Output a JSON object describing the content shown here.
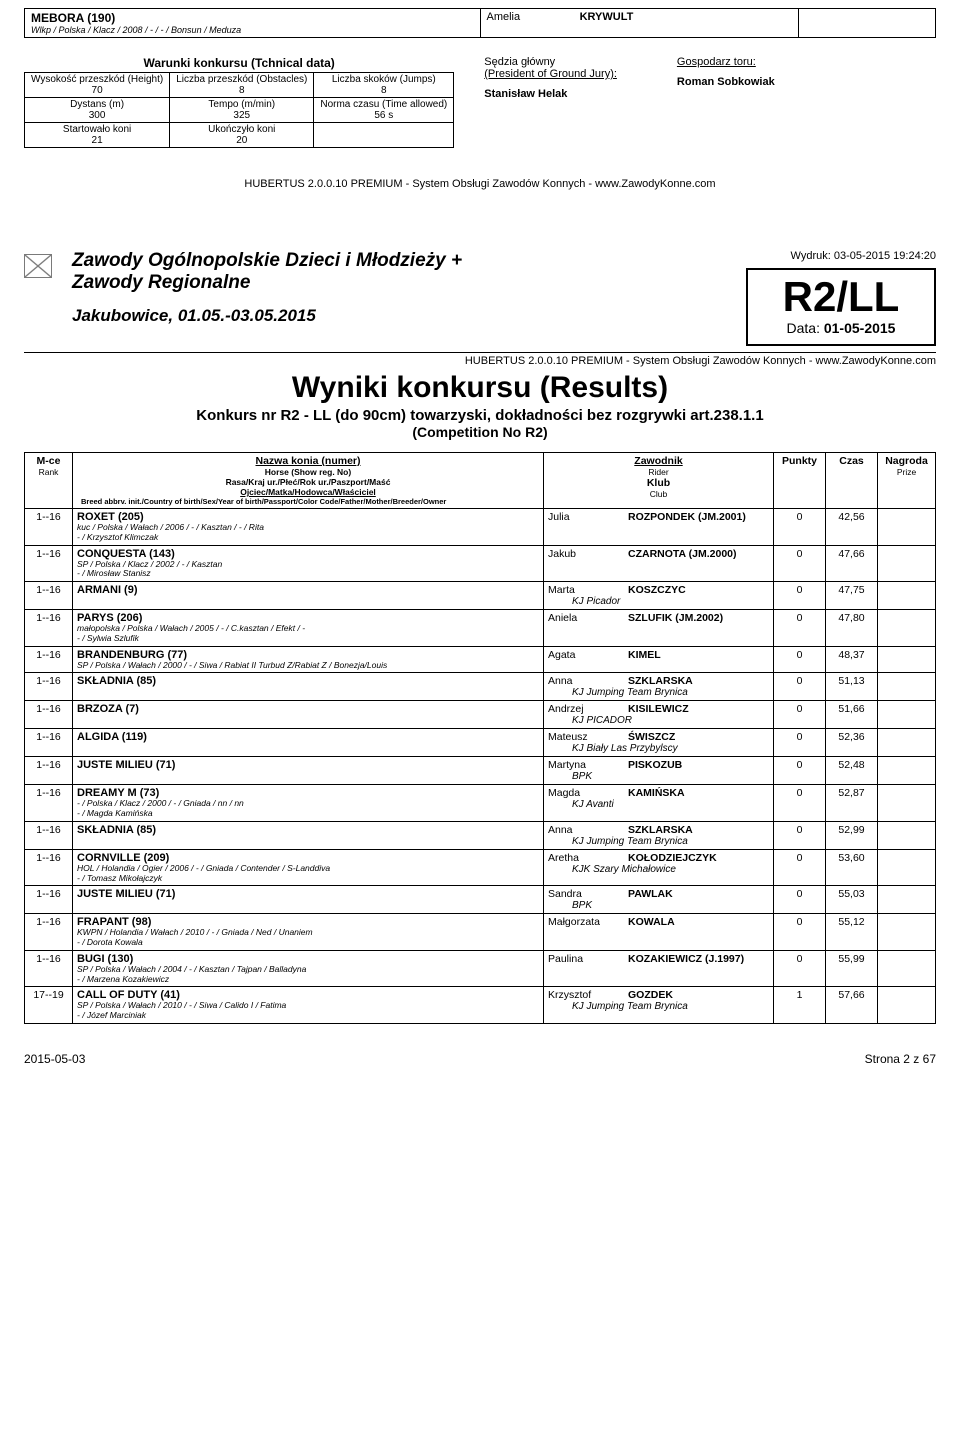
{
  "topHorse": {
    "name": "MEBORA (190)",
    "pedigree": "Wlkp / Polska / Klacz / 2008 / - / - / Bonsun / Meduza"
  },
  "topRider": {
    "first": "Amelia",
    "last": "KRYWULT"
  },
  "tech": {
    "title": "Warunki konkursu (Tchnical data)",
    "rows": [
      [
        {
          "label": "Wysokość przeszkód (Height)",
          "val": "70"
        },
        {
          "label": "Liczba przeszkód (Obstacles)",
          "val": "8"
        },
        {
          "label": "Liczba skoków (Jumps)",
          "val": "8"
        }
      ],
      [
        {
          "label": "Dystans (m)",
          "val": "300"
        },
        {
          "label": "Tempo (m/min)",
          "val": "325"
        },
        {
          "label": "Norma czasu (Time allowed)",
          "val": "56 s"
        }
      ],
      [
        {
          "label": "Startowało koni",
          "val": "21"
        },
        {
          "label": "Ukończyło koni",
          "val": "20"
        },
        {
          "label": "",
          "val": ""
        }
      ]
    ]
  },
  "officials": {
    "judgeLbl1": "Sędzia główny",
    "judgeLbl2": "(President of Ground Jury):",
    "judgeName": "Stanisław Helak",
    "hostLbl": "Gospodarz toru:",
    "hostName": "Roman Sobkowiak"
  },
  "systemLine": "HUBERTUS 2.0.0.10 PREMIUM - System Obsługi Zawodów Konnych - www.ZawodyKonne.com",
  "event": {
    "title1": "Zawody Ogólnopolskie Dzieci i Młodzieży +",
    "title2": "Zawody Regionalne",
    "dates": "Jakubowice, 01.05.-03.05.2015",
    "printLine": "Wydruk: 03-05-2015 19:24:20",
    "code": "R2/LL",
    "dateLabel": "Data:",
    "dateVal": "01-05-2015"
  },
  "results": {
    "title": "Wyniki konkursu (Results)",
    "sub": "Konkurs nr R2 - LL (do 90cm) towarzyski, dokładności bez rozgrywki art.238.1.1",
    "sub2": "(Competition No R2)"
  },
  "headers": {
    "rank": "M-ce",
    "rankSub": "Rank",
    "horseL1": "Nazwa konia (numer)",
    "horseL2": "Horse (Show reg. No)",
    "horseL3": "Rasa/Kraj ur./Płeć/Rok ur./Paszport/Maść",
    "horseL3b": "Ojciec/Matka/Hodowca/Właściciel",
    "horseL4": "Breed abbrv. init./Country of birth/Sex/Year of birth/Passport/Color Code/Father/Mother/Breeder/Owner",
    "rider": "Zawodnik",
    "riderSub": "Rider",
    "club": "Klub",
    "clubSub": "Club",
    "points": "Punkty",
    "time": "Czas",
    "prize": "Nagroda",
    "prizeSub": "Prize"
  },
  "rows": [
    {
      "rank": "1--16",
      "horse": "ROXET (205)",
      "pedigree": "kuc / Polska / Wałach / 2006 / - / Kasztan / - / Rita\n- / Krzysztof Klimczak",
      "first": "Julia",
      "last": "ROZPONDEK (JM.2001)",
      "club": "",
      "pts": "0",
      "time": "42,56"
    },
    {
      "rank": "1--16",
      "horse": "CONQUESTA (143)",
      "pedigree": "SP / Polska / Klacz / 2002 / - / Kasztan\n- / Mirosław Stanisz",
      "first": "Jakub",
      "last": "CZARNOTA (JM.2000)",
      "club": "",
      "pts": "0",
      "time": "47,66"
    },
    {
      "rank": "1--16",
      "horse": "ARMANI (9)",
      "pedigree": "",
      "first": "Marta",
      "last": "KOSZCZYC",
      "club": "KJ Picador",
      "pts": "0",
      "time": "47,75"
    },
    {
      "rank": "1--16",
      "horse": "PARYS (206)",
      "pedigree": "małopolska / Polska / Wałach / 2005 / - / C.kasztan / Efekt / -\n- / Sylwia Szlufik",
      "first": "Aniela",
      "last": "SZLUFIK (JM.2002)",
      "club": "",
      "pts": "0",
      "time": "47,80"
    },
    {
      "rank": "1--16",
      "horse": "BRANDENBURG (77)",
      "pedigree": "SP / Polska / Wałach / 2000 / - / Siwa / Rabiat II Turbud Z/Rabiat Z / Bonezja/Louis",
      "first": "Agata",
      "last": "KIMEL",
      "club": "",
      "pts": "0",
      "time": "48,37"
    },
    {
      "rank": "1--16",
      "horse": "SKŁADNIA (85)",
      "pedigree": "",
      "first": "Anna",
      "last": "SZKLARSKA",
      "club": "KJ Jumping Team Brynica",
      "pts": "0",
      "time": "51,13"
    },
    {
      "rank": "1--16",
      "horse": "BRZOZA (7)",
      "pedigree": "",
      "first": "Andrzej",
      "last": "KISILEWICZ",
      "club": "KJ PICADOR",
      "pts": "0",
      "time": "51,66"
    },
    {
      "rank": "1--16",
      "horse": "ALGIDA (119)",
      "pedigree": "",
      "first": "Mateusz",
      "last": "ŚWISZCZ",
      "club": "KJ Biały Las Przybylscy",
      "pts": "0",
      "time": "52,36"
    },
    {
      "rank": "1--16",
      "horse": "JUSTE MILIEU (71)",
      "pedigree": "",
      "first": "Martyna",
      "last": "PISKOZUB",
      "club": "BPK",
      "pts": "0",
      "time": "52,48"
    },
    {
      "rank": "1--16",
      "horse": "DREAMY M (73)",
      "pedigree": "- / Polska / Klacz / 2000 / - / Gniada / nn / nn\n- / Magda Kamińska",
      "first": "Magda",
      "last": "KAMIŃSKA",
      "club": "KJ Avanti",
      "pts": "0",
      "time": "52,87"
    },
    {
      "rank": "1--16",
      "horse": "SKŁADNIA (85)",
      "pedigree": "",
      "first": "Anna",
      "last": "SZKLARSKA",
      "club": "KJ Jumping Team Brynica",
      "pts": "0",
      "time": "52,99"
    },
    {
      "rank": "1--16",
      "horse": "CORNVILLE (209)",
      "pedigree": "HOL / Holandia / Ogier / 2006 / - / Gniada / Contender / S-Landdiva\n- / Tomasz Mikołajczyk",
      "first": "Aretha",
      "last": "KOŁODZIEJCZYK",
      "club": "KJK Szary Michałowice",
      "pts": "0",
      "time": "53,60"
    },
    {
      "rank": "1--16",
      "horse": "JUSTE MILIEU (71)",
      "pedigree": "",
      "first": "Sandra",
      "last": "PAWLAK",
      "club": "BPK",
      "pts": "0",
      "time": "55,03"
    },
    {
      "rank": "1--16",
      "horse": "FRAPANT (98)",
      "pedigree": "KWPN / Holandia / Wałach / 2010 / - / Gniada / Ned / Unaniem\n- / Dorota Kowala",
      "first": "Małgorzata",
      "last": "KOWALA",
      "club": "",
      "pts": "0",
      "time": "55,12"
    },
    {
      "rank": "1--16",
      "horse": "BUGI (130)",
      "pedigree": "SP / Polska / Wałach / 2004 / - / Kasztan / Tajpan / Balladyna\n- / Marzena Kozakiewicz",
      "first": "Paulina",
      "last": "KOZAKIEWICZ (J.1997)",
      "club": "",
      "pts": "0",
      "time": "55,99"
    },
    {
      "rank": "17--19",
      "horse": "CALL OF DUTY (41)",
      "pedigree": "SP / Polska / Wałach / 2010 / - / Siwa / Calido I / Fatima\n- / Józef Marciniak",
      "first": "Krzysztof",
      "last": "GOZDEK",
      "club": "KJ Jumping Team Brynica",
      "pts": "1",
      "time": "57,66"
    }
  ],
  "footer": {
    "left": "2015-05-03",
    "right": "Strona 2 z 67"
  }
}
